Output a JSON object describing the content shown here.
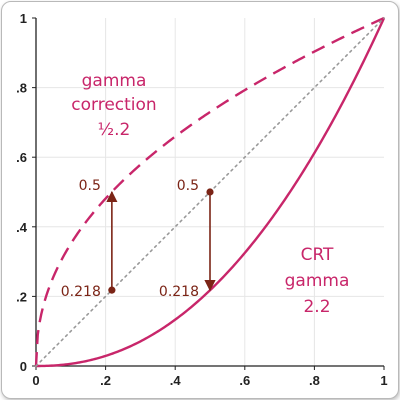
{
  "chart_data": {
    "type": "line",
    "xlim": [
      0,
      1
    ],
    "ylim": [
      0,
      1
    ],
    "x_ticks": [
      {
        "value": 0,
        "label": "0"
      },
      {
        "value": 0.2,
        "label": ".2"
      },
      {
        "value": 0.4,
        "label": ".4"
      },
      {
        "value": 0.6,
        "label": ".6"
      },
      {
        "value": 0.8,
        "label": ".8"
      },
      {
        "value": 1,
        "label": "1"
      }
    ],
    "y_ticks": [
      {
        "value": 0,
        "label": "0"
      },
      {
        "value": 0.2,
        "label": ".2"
      },
      {
        "value": 0.4,
        "label": ".4"
      },
      {
        "value": 0.6,
        "label": ".6"
      },
      {
        "value": 0.8,
        "label": ".8"
      },
      {
        "value": 1,
        "label": "1"
      }
    ],
    "grid": true,
    "series": [
      {
        "id": "gamma_correction",
        "style": "dashed",
        "exponent": 0.4545,
        "color": "#c8266a",
        "label_lines": [
          "gamma",
          "correction",
          "½.2"
        ]
      },
      {
        "id": "crt_gamma",
        "style": "solid",
        "exponent": 2.2,
        "color": "#c8266a",
        "label_lines": [
          "CRT",
          "gamma",
          "2.2"
        ]
      },
      {
        "id": "identity",
        "style": "dotted",
        "exponent": 1,
        "color": "#999999"
      }
    ],
    "annotations": [
      {
        "x": 0.218,
        "from_y": 0.218,
        "to_y": 0.5,
        "top_label": "0.5",
        "bottom_label": "0.218"
      },
      {
        "x": 0.5,
        "from_y": 0.5,
        "to_y": 0.218,
        "top_label": "0.5",
        "bottom_label": "0.218"
      }
    ],
    "colors": {
      "curve": "#c8266a",
      "arrow": "#7b2416",
      "grid": "#e6e6e6",
      "axis": "#222222",
      "identity": "#999999"
    }
  }
}
